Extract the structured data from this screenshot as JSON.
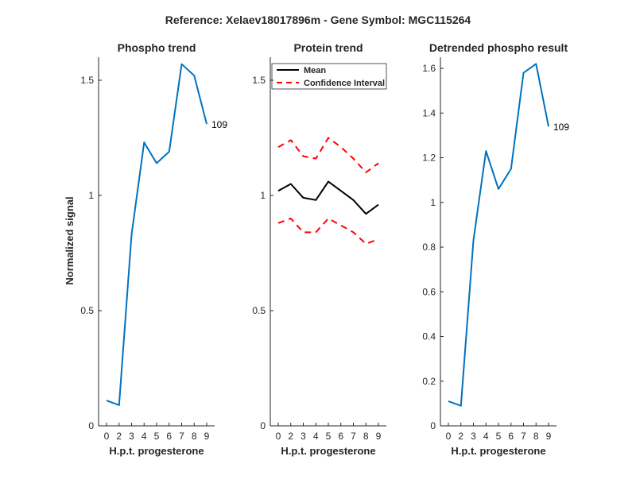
{
  "chart_data": [
    {
      "id": "phospho",
      "type": "line",
      "figure_title": "Reference:  Xelaev18017896m - Gene Symbol:  MGC115264",
      "title": "Phospho trend",
      "xlabel": "H.p.t. progesterone",
      "ylabel": "Normalized signal",
      "x_ticks": [
        "0",
        "2",
        "3",
        "4",
        "5",
        "6",
        "7",
        "8",
        "9"
      ],
      "ylim": [
        0,
        1.6
      ],
      "y_ticks": [
        0,
        0.5,
        1,
        1.5
      ],
      "y_tick_labels": [
        "0",
        "0.5",
        "1",
        "1.5"
      ],
      "series": [
        {
          "color": "#0072bd",
          "dash": "solid",
          "values": [
            0.11,
            0.09,
            0.83,
            1.23,
            1.14,
            1.19,
            1.57,
            1.52,
            1.31
          ]
        }
      ],
      "end_label": "109"
    },
    {
      "id": "protein",
      "type": "line",
      "title": "Protein trend",
      "xlabel": "H.p.t. progesterone",
      "x_ticks": [
        "0",
        "2",
        "3",
        "4",
        "5",
        "6",
        "7",
        "8",
        "9"
      ],
      "ylim": [
        0,
        1.6
      ],
      "y_ticks": [
        0,
        0.5,
        1,
        1.5
      ],
      "y_tick_labels": [
        "0",
        "0.5",
        "1",
        "1.5"
      ],
      "legend_position": "top-left",
      "series": [
        {
          "name": "Mean",
          "color": "#000000",
          "dash": "solid",
          "values": [
            1.02,
            1.05,
            0.99,
            0.98,
            1.06,
            1.02,
            0.98,
            0.92,
            0.96
          ]
        },
        {
          "name": "Confidence Interval",
          "color": "#ff0000",
          "dash": "dashed",
          "values": [
            1.21,
            1.24,
            1.17,
            1.16,
            1.25,
            1.21,
            1.16,
            1.1,
            1.14
          ]
        },
        {
          "color": "#ff0000",
          "dash": "dashed",
          "values": [
            0.88,
            0.9,
            0.84,
            0.84,
            0.9,
            0.87,
            0.84,
            0.79,
            0.81
          ]
        }
      ]
    },
    {
      "id": "detrended",
      "type": "line",
      "title": "Detrended phospho result",
      "xlabel": "H.p.t. progesterone",
      "x_ticks": [
        "0",
        "2",
        "3",
        "4",
        "5",
        "6",
        "7",
        "8",
        "9"
      ],
      "ylim": [
        0,
        1.65
      ],
      "y_ticks": [
        0,
        0.2,
        0.4,
        0.6,
        0.8,
        1,
        1.2,
        1.4,
        1.6
      ],
      "y_tick_labels": [
        "0",
        "0.2",
        "0.4",
        "0.6",
        "0.8",
        "1",
        "1.2",
        "1.4",
        "1.6"
      ],
      "series": [
        {
          "color": "#0072bd",
          "dash": "solid",
          "values": [
            0.11,
            0.09,
            0.83,
            1.23,
            1.06,
            1.15,
            1.58,
            1.62,
            1.34
          ]
        }
      ],
      "end_label": "109"
    }
  ]
}
